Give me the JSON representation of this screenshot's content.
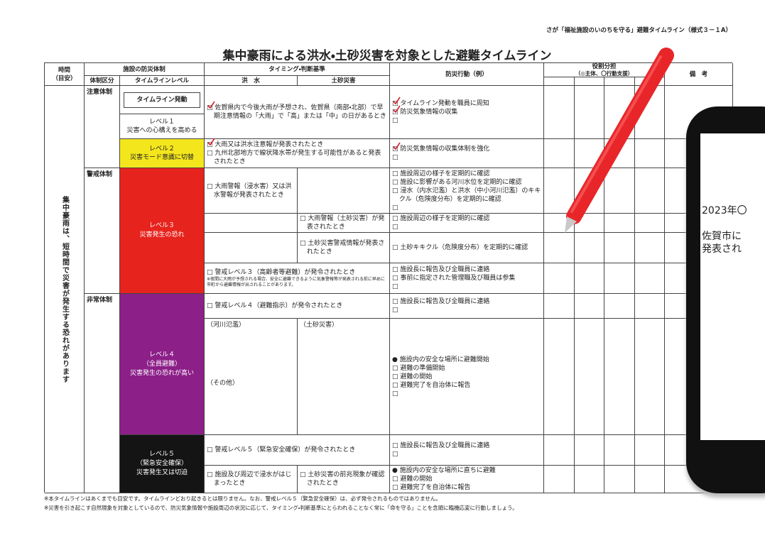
{
  "header": {
    "note": "さが「福祉施設のいのちを守る」避難タイムライン（様式３－１A）",
    "title": "集中豪雨による洪水・土砂災害を対象とした避難タイムライン"
  },
  "table": {
    "headers": {
      "time": "時間",
      "time_sub": "（目安）",
      "facility": "施設の防災体制",
      "regime": "体制区分",
      "level": "タイムラインレベル",
      "timing": "タイミング・判断基準",
      "flood": "洪　水",
      "sediment": "土砂災害",
      "action": "防災行動（例）",
      "role": "役割分担",
      "role_sub": "（◎主体、〇行動支援）",
      "remarks": "備　考"
    },
    "side_note": "集中豪雨は、短時間で災害が発生する恐れがあります",
    "regimes": [
      "注意体制",
      "警戒体制",
      "非常体制"
    ],
    "levels": [
      [
        "タイムライン発動"
      ],
      [
        "レベル１",
        "災害への心構えを高める"
      ],
      [
        "レベル２",
        "災害モード意識に切替"
      ],
      [
        "レベル３",
        "災害発生の恐れ"
      ],
      [
        "レベル４",
        "（全員避難）",
        "災害発生の恐れが高い"
      ],
      [
        "レベル５",
        "（緊急安全確保）",
        "災害発生又は切迫"
      ]
    ],
    "criteria": [
      [
        {
          "text": "□ 佐賀県内で今後大雨が予想され、佐賀県（南部・北部）で早期注意情報の「大雨」で「高」または「中」の日があるとき",
          "checked": true
        }
      ],
      [
        {
          "text": "□ 大雨又は洪水注意報が発表されたとき",
          "checked": true
        },
        {
          "text": "□ 九州北部地方で線状降水帯が発生する可能性があると発表されたとき"
        }
      ],
      [
        {
          "text": "□ 大雨警報（浸水害）又は洪水警報が発表されたとき"
        }
      ],
      [
        {
          "text": "□ 大雨警報（土砂災害）が発表されたとき"
        }
      ],
      [
        {
          "text": "□ 土砂災害警戒情報が発表されたとき"
        }
      ],
      [
        {
          "text": "□ 警戒レベル３（高齢者等避難）が発令されたとき"
        },
        {
          "text": "※夜間に大雨が予想される場合、安全に避難できるように気象警報等が発表される前に早めに市町から避難情報が出されることがあります。",
          "small": true
        }
      ],
      [
        {
          "text": "□ 警戒レベル４（避難指示）が発令されたとき"
        }
      ],
      [
        {
          "text": "（河川氾濫）"
        }
      ],
      [
        {
          "text": "（その他）"
        }
      ],
      [
        {
          "text": "（土砂災害）"
        }
      ],
      [
        {
          "text": "□ 警戒レベル５（緊急安全確保）が発令されたとき"
        }
      ],
      [
        {
          "text": "□ 施設及び周辺で浸水がはじまったとき"
        }
      ],
      [
        {
          "text": "□ 土砂災害の前兆現象が確認されたとき"
        }
      ]
    ],
    "actions": [
      [
        {
          "text": "□ タイムライン発動を職員に周知",
          "checked": true
        },
        {
          "text": "□ 防災気象情報の収集",
          "checked": true
        },
        {
          "text": "□"
        }
      ],
      [
        {
          "text": "□ 防災気象情報の収集体制を強化",
          "checked": true
        },
        {
          "text": "□"
        }
      ],
      [
        {
          "text": "□ 施設周辺の様子を定期的に確認"
        },
        {
          "text": "□ 施設に影響がある河川水位を定期的に確認"
        },
        {
          "text": "□ 浸水（内水氾濫）と洪水（中小河川氾濫）のキキクル（危険度分布）を定期的に確認"
        },
        {
          "text": "□"
        }
      ],
      [
        {
          "text": "□ 施設周辺の様子を定期的に確認"
        },
        {
          "text": "□"
        }
      ],
      [
        {
          "text": "□ 土砂キキクル（危険度分布）を定期的に確認"
        }
      ],
      [
        {
          "text": "□ 施設長に報告及び全職員に連絡"
        },
        {
          "text": "□ 事前に指定された管理職及び職員は参集"
        },
        {
          "text": "□"
        }
      ],
      [
        {
          "text": "□ 施設長に報告及び全職員に連絡"
        },
        {
          "text": "□"
        }
      ],
      [
        {
          "text": "● 施設内の安全な場所に避難開始"
        },
        {
          "text": "□ 避難の準備開始"
        },
        {
          "text": "□ 避難の開始"
        },
        {
          "text": "□ 避難完了を自治体に報告"
        },
        {
          "text": "□"
        }
      ],
      [
        {
          "text": "□ 施設長に報告及び全職員に連絡"
        },
        {
          "text": "□"
        }
      ],
      [
        {
          "text": "● 施設内の安全な場所に直ちに避難"
        },
        {
          "text": "□ 避難の開始"
        },
        {
          "text": "□ 避難完了を自治体に報告"
        }
      ]
    ]
  },
  "footnotes": [
    "※本タイムラインはあくまでも目安です。タイムラインどおり起きるとは限りません。なお、警戒レベル５（緊急安全確保）は、必ず発令されるものではありません。",
    "※災害を引き起こす自然現象を対象としているので、防災気象情報や施設周辺の状況に応じて、タイミング・判断基準にとらわれることなく常に「命を守る」ことを念頭に臨機応変に行動しましょう。"
  ],
  "phone": {
    "lines": [
      "2023年〇",
      "佐賀市に",
      "発表され"
    ]
  }
}
